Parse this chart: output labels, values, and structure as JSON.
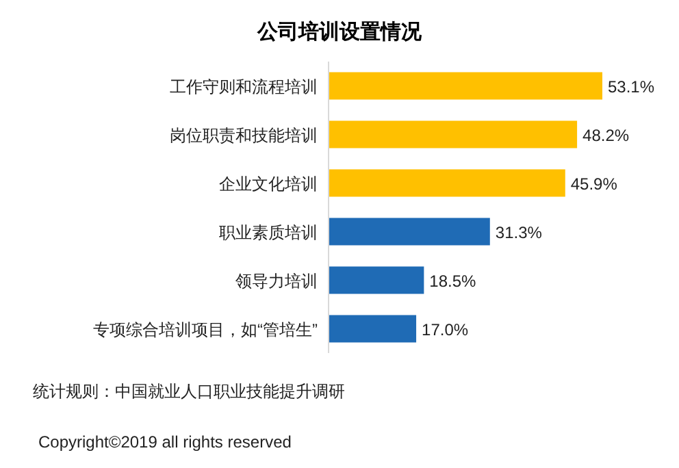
{
  "chart_data": {
    "type": "bar",
    "orientation": "horizontal",
    "title": "公司培训设置情况",
    "categories": [
      "工作守则和流程培训",
      "岗位职责和技能培训",
      "企业文化培训",
      "职业素质培训",
      "领导力培训",
      "专项综合培训项目，如“管培生”"
    ],
    "values": [
      53.1,
      48.2,
      45.9,
      31.3,
      18.5,
      17.0
    ],
    "colors": [
      "#ffc000",
      "#ffc000",
      "#ffc000",
      "#1f6bb5",
      "#1f6bb5",
      "#1f6bb5"
    ],
    "value_labels": [
      "53.1%",
      "48.2%",
      "45.9%",
      "31.3%",
      "18.5%",
      "17.0%"
    ],
    "annotations": [
      "统计规则：中国就业人口职业技能提升调研",
      "Copyright©2019 all rights reserved"
    ]
  }
}
